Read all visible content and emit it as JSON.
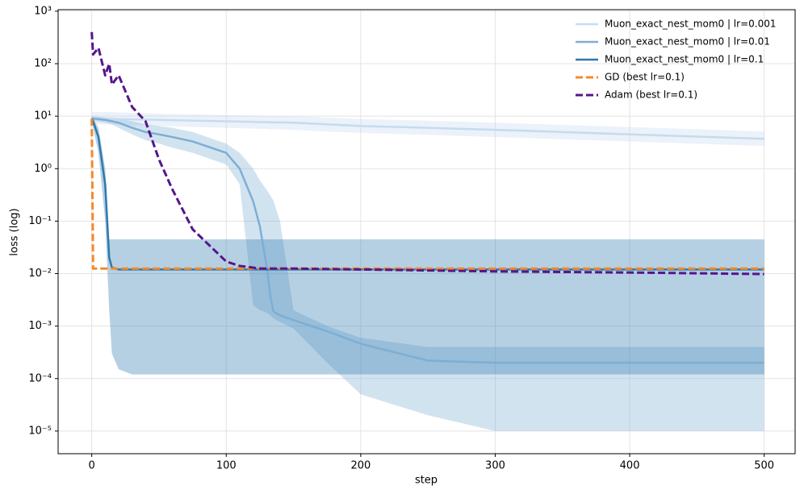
{
  "chart_data": {
    "type": "line",
    "x_label": "step",
    "y_label": "loss (log)",
    "log_y": true,
    "grid": true,
    "legend": "upper right",
    "xlim": [
      -25,
      523
    ],
    "xticks": [
      0,
      100,
      200,
      300,
      400,
      500
    ],
    "ylim": [
      3.7e-06,
      1070
    ],
    "yticks": [
      {
        "value": 1e-05,
        "label": "10⁻⁵"
      },
      {
        "value": 0.0001,
        "label": "10⁻⁴"
      },
      {
        "value": 0.001,
        "label": "10⁻³"
      },
      {
        "value": 0.01,
        "label": "10⁻²"
      },
      {
        "value": 0.1,
        "label": "10⁻¹"
      },
      {
        "value": 1,
        "label": "10⁰"
      },
      {
        "value": 10,
        "label": "10¹"
      },
      {
        "value": 100,
        "label": "10²"
      },
      {
        "value": 1000,
        "label": "10³"
      }
    ],
    "x": [
      0,
      1,
      5,
      10,
      13,
      15,
      20,
      30,
      40,
      50,
      60,
      75,
      100,
      110,
      120,
      125,
      130,
      133,
      135,
      140,
      150,
      175,
      200,
      250,
      300,
      400,
      500
    ],
    "series": [
      {
        "name": "Muon_exact_nest_mom0 | lr=0.001",
        "color": "#c6dbef",
        "dash": false,
        "values": [
          9,
          9,
          9,
          8.9,
          8.9,
          8.9,
          8.8,
          8.7,
          8.6,
          8.5,
          8.4,
          8.2,
          8,
          7.9,
          7.8,
          7.7,
          7.7,
          7.6,
          7.6,
          7.6,
          7.5,
          7,
          6.5,
          6,
          5.5,
          4.5,
          3.7
        ],
        "band": {
          "upper": [
            12,
            12,
            12,
            12,
            12,
            12,
            11.8,
            11.6,
            11.4,
            11.2,
            11,
            10.8,
            10.5,
            10.4,
            10.3,
            10.2,
            10.2,
            10.1,
            10.1,
            10.1,
            10,
            9.4,
            8.8,
            8.2,
            7.5,
            6.2,
            5.1
          ],
          "lower": [
            7,
            7,
            7,
            6.9,
            6.9,
            6.9,
            6.8,
            6.7,
            6.6,
            6.5,
            6.4,
            6.2,
            6,
            5.9,
            5.8,
            5.7,
            5.7,
            5.6,
            5.6,
            5.6,
            5.5,
            5.1,
            4.8,
            4.4,
            4,
            3.3,
            2.7
          ]
        }
      },
      {
        "name": "Muon_exact_nest_mom0 | lr=0.01",
        "color": "#7eaed4",
        "dash": false,
        "values": [
          9,
          9,
          8.8,
          8.5,
          8.2,
          8,
          7.5,
          6,
          5,
          4.5,
          4,
          3.3,
          2,
          1,
          0.24,
          0.08,
          0.014,
          0.0035,
          0.0019,
          0.0016,
          0.0013,
          0.0008,
          0.00046,
          0.00022,
          0.0002,
          0.0002,
          0.0002
        ],
        "band": {
          "upper": [
            10,
            10,
            9.8,
            9.5,
            9.3,
            9.2,
            9,
            8,
            7,
            6.5,
            6,
            5,
            3,
            2,
            1,
            0.6,
            0.4,
            0.3,
            0.25,
            0.1,
            0.002,
            0.001,
            0.0006,
            0.0004,
            0.0004,
            0.0004,
            0.0004
          ],
          "lower": [
            8,
            8,
            7.8,
            7.5,
            7.2,
            7,
            6,
            4.5,
            3.5,
            3,
            2.5,
            2,
            1.2,
            0.5,
            0.0025,
            0.002,
            0.0018,
            0.0016,
            0.0014,
            0.0012,
            0.0009,
            0.0002,
            5e-05,
            2e-05,
            1e-05,
            1e-05,
            1e-05
          ]
        }
      },
      {
        "name": "Muon_exact_nest_mom0 | lr=0.1",
        "color": "#2e78ae",
        "dash": false,
        "values": [
          9,
          8,
          4,
          0.5,
          0.02,
          0.013,
          0.012,
          0.012,
          0.012,
          0.012,
          0.012,
          0.012,
          0.012,
          0.012,
          0.012,
          0.012,
          0.012,
          0.012,
          0.012,
          0.012,
          0.012,
          0.012,
          0.012,
          0.012,
          0.012,
          0.012,
          0.012
        ],
        "band": {
          "upper": [
            10,
            9,
            6,
            1,
            0.045,
            0.045,
            0.045,
            0.045,
            0.045,
            0.045,
            0.045,
            0.045,
            0.045,
            0.045,
            0.045,
            0.045,
            0.045,
            0.045,
            0.045,
            0.045,
            0.045,
            0.045,
            0.045,
            0.045,
            0.045,
            0.045,
            0.045
          ],
          "lower": [
            8,
            6,
            2,
            0.1,
            0.002,
            0.0003,
            0.00015,
            0.00012,
            0.00012,
            0.00012,
            0.00012,
            0.00012,
            0.00012,
            0.00012,
            0.00012,
            0.00012,
            0.00012,
            0.00012,
            0.00012,
            0.00012,
            0.00012,
            0.00012,
            0.00012,
            0.00012,
            0.00012,
            0.00012,
            0.00012
          ]
        }
      },
      {
        "name": "GD (best lr=0.1)",
        "color": "#f5892a",
        "dash": true,
        "values": [
          9,
          0.0125,
          0.0125,
          0.0125,
          0.0125,
          0.0125,
          0.0125,
          0.0125,
          0.0125,
          0.0125,
          0.0125,
          0.0125,
          0.0125,
          0.0125,
          0.0125,
          0.0125,
          0.0125,
          0.0125,
          0.0125,
          0.0125,
          0.0125,
          0.0125,
          0.0125,
          0.0125,
          0.0125,
          0.0125,
          0.0125
        ]
      },
      {
        "name": "Adam (best lr=0.1)",
        "color": "#55168c",
        "dash": true,
        "values": [
          400,
          150,
          200,
          60,
          100,
          40,
          60,
          15,
          8,
          1.5,
          0.4,
          0.07,
          0.017,
          0.014,
          0.013,
          0.0125,
          0.0125,
          0.0125,
          0.0125,
          0.0125,
          0.0125,
          0.0122,
          0.012,
          0.0115,
          0.011,
          0.0105,
          0.0098
        ]
      }
    ]
  }
}
